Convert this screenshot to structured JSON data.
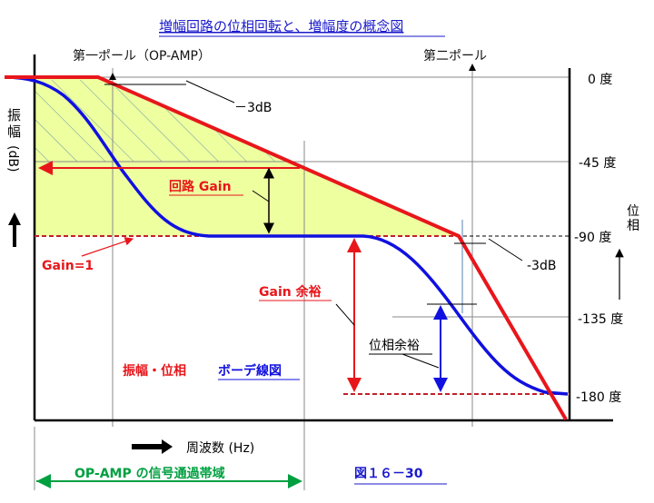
{
  "title": "増幅回路の位相回転と、増幅度の概念図",
  "first_pole": "第一ポール（OP-AMP）",
  "second_pole": "第二ポール",
  "y_axis_left": [
    "振",
    "幅",
    "(dB)"
  ],
  "y_axis_right": [
    "位",
    "相"
  ],
  "phase_ticks": [
    "0 度",
    "-45 度",
    "-90 度",
    "-135 度",
    "-180 度"
  ],
  "minus3db_1": "－3dB",
  "minus3db_2": "-3dB",
  "circuit_gain": "回路 Gain",
  "gain_one": "Gain=1",
  "gain_margin": "Gain 余裕",
  "phase_margin": "位相余裕",
  "legend_red": "振幅・位相",
  "legend_blue": "ボーデ線図",
  "x_axis": "周波数 (Hz)",
  "bandwidth": "OP-AMP の信号通過帯域",
  "figure_no": "図１６－30",
  "colors": {
    "gain": "#e8161b",
    "phase": "#1010e0",
    "fill": "#eeffa0",
    "title": "#1a1acc",
    "band": "#00a040"
  }
}
